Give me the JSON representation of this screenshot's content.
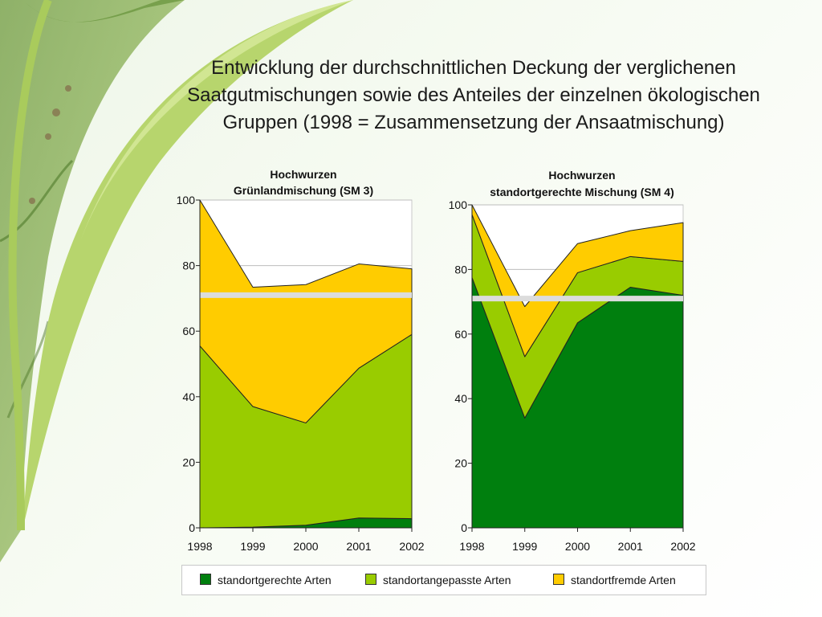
{
  "slide": {
    "title_lines": [
      "Entwicklung der durchschnittlichen Deckung der verglichenen",
      "Saatgutmischungen sowie des Anteiles der einzelnen ökologischen",
      "Gruppen (1998 = Zusammensetzung der Ansaatmischung)"
    ]
  },
  "legend": [
    {
      "label": "standortgerechte Arten",
      "color": "#007f0e"
    },
    {
      "label": "standortangepasste Arten",
      "color": "#99cc00"
    },
    {
      "label": "standortfremde Arten",
      "color": "#ffcc00"
    }
  ],
  "chart_data": [
    {
      "type": "area",
      "stacked": true,
      "title": [
        "Hochwurzen",
        "Grünlandmischung (SM 3)"
      ],
      "x": [
        "1998",
        "1999",
        "2000",
        "2001",
        "2002"
      ],
      "ylim": [
        0,
        100
      ],
      "yticks": [
        0,
        20,
        40,
        60,
        80,
        100
      ],
      "reference_line": 71,
      "series": [
        {
          "name": "standortgerechte Arten",
          "color": "#007f0e",
          "values": [
            0,
            0.2,
            0.8,
            3,
            2.8
          ]
        },
        {
          "name": "standortangepasste Arten",
          "color": "#99cc00",
          "values": [
            55.5,
            36.8,
            31.2,
            45.7,
            56.2
          ]
        },
        {
          "name": "standortfremde Arten",
          "color": "#ffcc00",
          "values": [
            44.5,
            36.4,
            42.2,
            31.8,
            20
          ]
        }
      ]
    },
    {
      "type": "area",
      "stacked": true,
      "title": [
        "Hochwurzen",
        "standortgerechte Mischung (SM 4)"
      ],
      "x": [
        "1998",
        "1999",
        "2000",
        "2001",
        "2002"
      ],
      "ylim": [
        0,
        100
      ],
      "yticks": [
        0,
        20,
        40,
        60,
        80,
        100
      ],
      "reference_line": 71,
      "series": [
        {
          "name": "standortgerechte Arten",
          "color": "#007f0e",
          "values": [
            77.5,
            34,
            63.5,
            74.5,
            72
          ]
        },
        {
          "name": "standortangepasste Arten",
          "color": "#99cc00",
          "values": [
            19.5,
            19,
            15.5,
            9.5,
            10.5
          ]
        },
        {
          "name": "standortfremde Arten",
          "color": "#ffcc00",
          "values": [
            3,
            15.5,
            9,
            8,
            12
          ]
        }
      ]
    }
  ]
}
